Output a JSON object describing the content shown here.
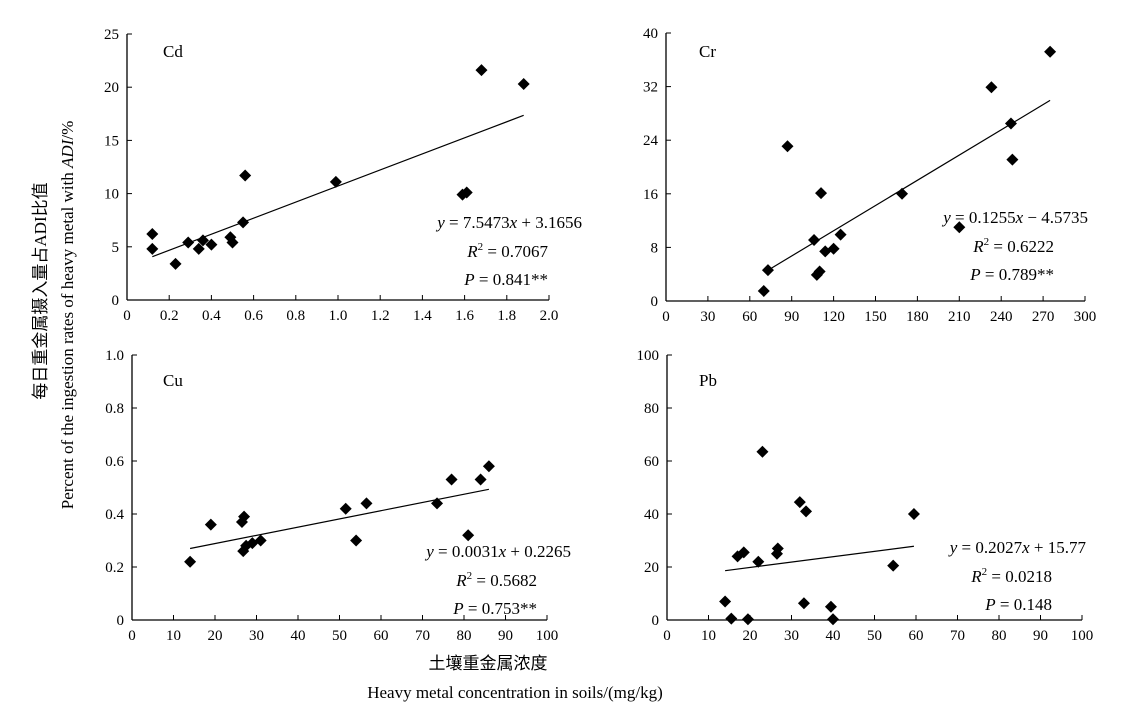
{
  "y_axis_title": {
    "zh": "每日重金属摄入量占ADI比值",
    "en_prefix": "Percent of the ingestion rates of heavy metal with ",
    "en_adi": "ADI",
    "en_suffix": "/%"
  },
  "x_axis_title": {
    "zh": "土壤重金属浓度",
    "en": "Heavy metal concentration in soils/(mg/kg)"
  },
  "colors": {
    "marker": "#000000",
    "line": "#000000",
    "axis": "#000000"
  },
  "chart_data": [
    {
      "type": "scatter",
      "panel": "Cd",
      "xlim": [
        0,
        2.0
      ],
      "ylim": [
        0,
        25
      ],
      "xticks": [
        "0",
        "0.2",
        "0.4",
        "0.6",
        "0.8",
        "1.0",
        "1.2",
        "1.4",
        "1.6",
        "1.8",
        "2.0"
      ],
      "yticks": [
        "0",
        "5",
        "10",
        "15",
        "20",
        "25"
      ],
      "points": [
        [
          0.12,
          6.2
        ],
        [
          0.12,
          4.8
        ],
        [
          0.23,
          3.4
        ],
        [
          0.29,
          5.4
        ],
        [
          0.34,
          4.8
        ],
        [
          0.36,
          5.6
        ],
        [
          0.4,
          5.2
        ],
        [
          0.49,
          5.9
        ],
        [
          0.5,
          5.4
        ],
        [
          0.55,
          7.3
        ],
        [
          0.56,
          11.7
        ],
        [
          0.99,
          11.1
        ],
        [
          1.59,
          9.9
        ],
        [
          1.61,
          10.1
        ],
        [
          1.68,
          21.6
        ],
        [
          1.88,
          20.3
        ]
      ],
      "fit": {
        "slope": 7.5473,
        "intercept": 3.1656,
        "x_range": [
          0.12,
          1.88
        ]
      },
      "annotation": {
        "eq_pre": "y",
        "eq_mid": " = 7.5473",
        "eq_var": "x",
        "eq_post": " + 3.1656",
        "r2_label": "R",
        "r2_sup": "2",
        "r2_value": " = 0.7067",
        "p_label": "P",
        "p_value": " = 0.841**"
      }
    },
    {
      "type": "scatter",
      "panel": "Cr",
      "xlim": [
        0,
        300
      ],
      "ylim": [
        0,
        40
      ],
      "xticks": [
        "0",
        "30",
        "60",
        "90",
        "120",
        "150",
        "180",
        "210",
        "240",
        "270",
        "300"
      ],
      "yticks": [
        "0",
        "8",
        "16",
        "24",
        "32",
        "40"
      ],
      "points": [
        [
          70,
          1.5
        ],
        [
          73,
          4.6
        ],
        [
          87,
          23.1
        ],
        [
          106,
          9.1
        ],
        [
          108,
          3.9
        ],
        [
          110,
          4.4
        ],
        [
          111,
          16.1
        ],
        [
          114,
          7.4
        ],
        [
          120,
          7.8
        ],
        [
          125,
          9.9
        ],
        [
          169,
          16.0
        ],
        [
          210,
          11.0
        ],
        [
          233,
          31.9
        ],
        [
          247,
          26.5
        ],
        [
          248,
          21.1
        ],
        [
          275,
          37.2
        ]
      ],
      "fit": {
        "slope": 0.1255,
        "intercept": -4.5735,
        "x_range": [
          73,
          275
        ]
      },
      "annotation": {
        "eq_pre": "y",
        "eq_mid": " = 0.1255",
        "eq_var": "x",
        "eq_post": " − 4.5735",
        "r2_label": "R",
        "r2_sup": "2",
        "r2_value": " = 0.6222",
        "p_label": "P",
        "p_value": " = 0.789**"
      }
    },
    {
      "type": "scatter",
      "panel": "Cu",
      "xlim": [
        0,
        100
      ],
      "ylim": [
        0,
        1.0
      ],
      "xticks": [
        "0",
        "10",
        "20",
        "30",
        "40",
        "50",
        "60",
        "70",
        "80",
        "90",
        "100"
      ],
      "yticks": [
        "0",
        "0.2",
        "0.4",
        "0.6",
        "0.8",
        "1.0"
      ],
      "points": [
        [
          14,
          0.22
        ],
        [
          19,
          0.36
        ],
        [
          26.5,
          0.37
        ],
        [
          26.8,
          0.26
        ],
        [
          27,
          0.39
        ],
        [
          27.5,
          0.28
        ],
        [
          29,
          0.29
        ],
        [
          31,
          0.3
        ],
        [
          51.5,
          0.42
        ],
        [
          54,
          0.3
        ],
        [
          56.5,
          0.44
        ],
        [
          73.5,
          0.44
        ],
        [
          77,
          0.53
        ],
        [
          81,
          0.32
        ],
        [
          84,
          0.53
        ],
        [
          86,
          0.58
        ]
      ],
      "fit": {
        "slope": 0.0031,
        "intercept": 0.2265,
        "x_range": [
          14,
          86
        ]
      },
      "annotation": {
        "eq_pre": "y",
        "eq_mid": " = 0.0031",
        "eq_var": "x",
        "eq_post": " + 0.2265",
        "r2_label": "R",
        "r2_sup": "2",
        "r2_value": " = 0.5682",
        "p_label": "P",
        "p_value": " = 0.753**"
      }
    },
    {
      "type": "scatter",
      "panel": "Pb",
      "xlim": [
        0,
        100
      ],
      "ylim": [
        0,
        100
      ],
      "xticks": [
        "0",
        "10",
        "20",
        "30",
        "40",
        "50",
        "60",
        "70",
        "80",
        "90",
        "100"
      ],
      "yticks": [
        "0",
        "20",
        "40",
        "60",
        "80",
        "100"
      ],
      "points": [
        [
          14,
          7
        ],
        [
          15.5,
          0.5
        ],
        [
          17,
          24
        ],
        [
          18.5,
          25.5
        ],
        [
          19.5,
          0.3
        ],
        [
          22,
          22
        ],
        [
          23,
          63.5
        ],
        [
          26.5,
          25
        ],
        [
          26.7,
          27
        ],
        [
          32,
          44.5
        ],
        [
          33,
          6.3
        ],
        [
          33.5,
          41
        ],
        [
          39.5,
          5
        ],
        [
          40,
          0.3
        ],
        [
          54.5,
          20.5
        ],
        [
          59.5,
          40
        ]
      ],
      "fit": {
        "slope": 0.2027,
        "intercept": 15.77,
        "x_range": [
          14,
          59.5
        ]
      },
      "annotation": {
        "eq_pre": "y",
        "eq_mid": " = 0.2027",
        "eq_var": "x",
        "eq_post": " + 15.77",
        "r2_label": "R",
        "r2_sup": "2",
        "r2_value": " = 0.0218",
        "p_label": "P",
        "p_value": " = 0.148"
      }
    }
  ]
}
